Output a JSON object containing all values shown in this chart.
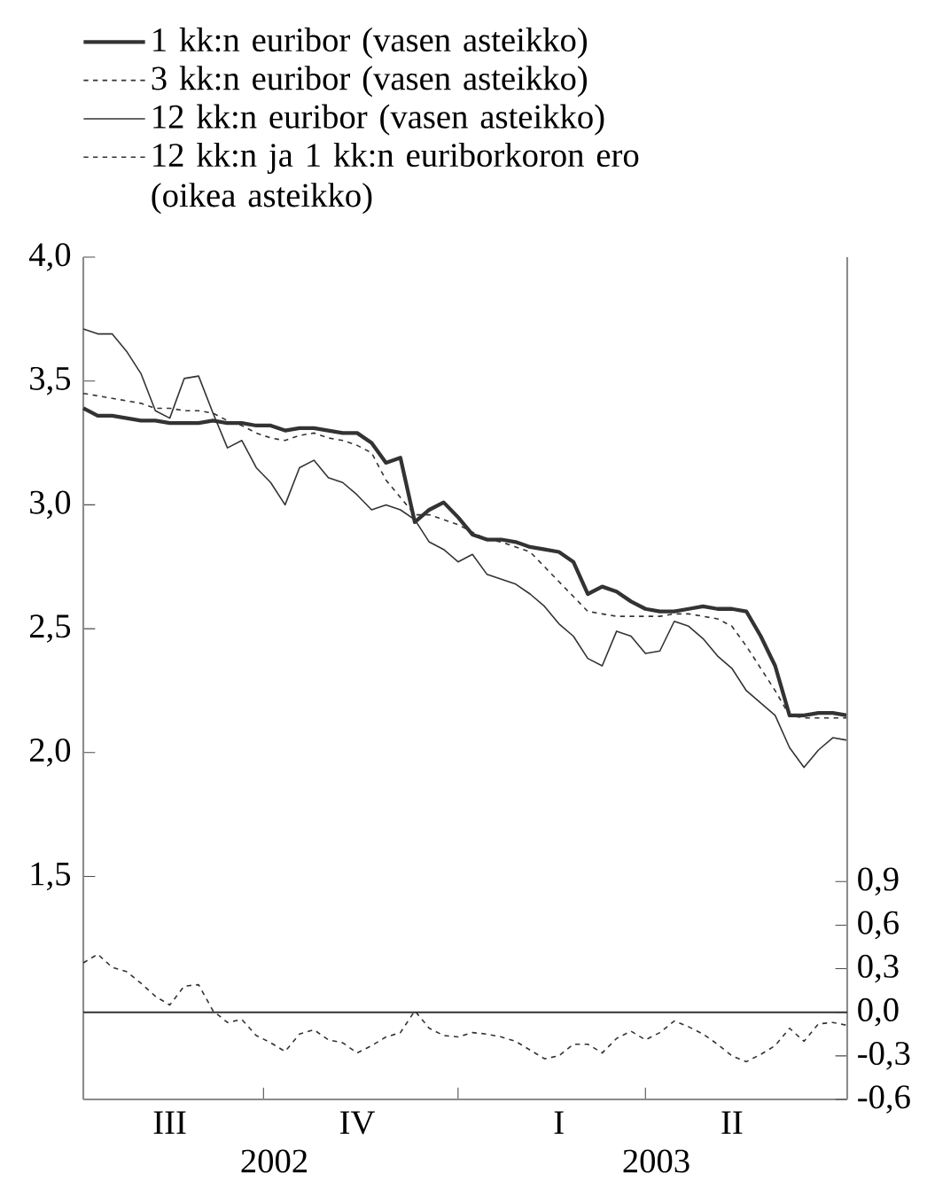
{
  "chart_data": {
    "type": "line",
    "legend": "top",
    "marker": "none",
    "categories": [
      null,
      null,
      null,
      null,
      null,
      null,
      "III",
      null,
      null,
      null,
      null,
      null,
      null,
      null,
      null,
      null,
      null,
      null,
      null,
      "IV",
      null,
      null,
      null,
      null,
      null,
      null,
      null,
      null,
      null,
      null,
      null,
      null,
      null,
      "I",
      null,
      null,
      null,
      null,
      null,
      null,
      null,
      null,
      null,
      null,
      null,
      "II",
      null,
      null,
      null,
      null,
      null,
      null,
      null,
      null
    ],
    "ylim": [
      0.6,
      4.0
    ],
    "yticks": [
      {
        "value": 1.5,
        "label": "1,5"
      },
      {
        "value": 2.0,
        "label": "2,0"
      },
      {
        "value": 2.5,
        "label": "2,5"
      },
      {
        "value": 3.0,
        "label": "3,0"
      },
      {
        "value": 3.5,
        "label": "3,5"
      },
      {
        "value": 4.0,
        "label": "4,0"
      }
    ],
    "y2lim": [
      -0.6,
      5.2
    ],
    "y2ticks": [
      {
        "value": -0.6,
        "label": "-0,6"
      },
      {
        "value": -0.3,
        "label": "-0,3"
      },
      {
        "value": 0.0,
        "label": "0,0"
      },
      {
        "value": 0.3,
        "label": "0,3"
      },
      {
        "value": 0.6,
        "label": "0,6"
      },
      {
        "value": 0.9,
        "label": "0,9"
      }
    ],
    "ref_lines": [
      {
        "axis": "y2",
        "value": 0,
        "color": "#333333"
      }
    ],
    "annotations": [
      "2002",
      "2003"
    ],
    "series": [
      {
        "name": "1 kk:n euribor (vasen asteikko)",
        "color": "#333333",
        "line_style": "solid",
        "values": [
          3.39,
          3.36,
          3.36,
          3.35,
          3.34,
          3.34,
          3.33,
          3.33,
          3.33,
          3.34,
          3.33,
          3.33,
          3.32,
          3.32,
          3.3,
          3.31,
          3.31,
          3.3,
          3.29,
          3.29,
          3.25,
          3.17,
          3.19,
          2.93,
          2.98,
          3.01,
          2.95,
          2.88,
          2.86,
          2.86,
          2.85,
          2.83,
          2.82,
          2.81,
          2.77,
          2.64,
          2.67,
          2.65,
          2.61,
          2.58,
          2.57,
          2.57,
          2.58,
          2.59,
          2.58,
          2.58,
          2.57,
          2.47,
          2.35,
          2.15,
          2.15,
          2.16,
          2.16,
          2.15
        ]
      },
      {
        "name": "3 kk:n euribor (vasen asteikko)",
        "color": "#333333",
        "line_style": "dashed",
        "values": [
          3.45,
          3.44,
          3.43,
          3.42,
          3.41,
          3.39,
          3.39,
          3.38,
          3.38,
          3.37,
          3.34,
          3.32,
          3.29,
          3.27,
          3.26,
          3.28,
          3.29,
          3.27,
          3.26,
          3.24,
          3.21,
          3.1,
          3.03,
          2.96,
          2.96,
          2.94,
          2.92,
          2.89,
          2.86,
          2.85,
          2.83,
          2.81,
          2.75,
          2.69,
          2.63,
          2.57,
          2.56,
          2.55,
          2.55,
          2.55,
          2.55,
          2.56,
          2.56,
          2.55,
          2.54,
          2.51,
          2.43,
          2.34,
          2.25,
          2.15,
          2.14,
          2.14,
          2.14,
          2.14
        ]
      },
      {
        "name": "12 kk:n euribor (vasen asteikko)",
        "color": "#333333",
        "line_style": "solid",
        "values": [
          3.71,
          3.69,
          3.69,
          3.62,
          3.53,
          3.38,
          3.35,
          3.51,
          3.52,
          3.37,
          3.23,
          3.26,
          3.15,
          3.09,
          3.0,
          3.15,
          3.18,
          3.11,
          3.09,
          3.04,
          2.98,
          3.0,
          2.98,
          2.94,
          2.85,
          2.82,
          2.77,
          2.8,
          2.72,
          2.7,
          2.68,
          2.64,
          2.59,
          2.52,
          2.47,
          2.38,
          2.35,
          2.49,
          2.47,
          2.4,
          2.41,
          2.53,
          2.51,
          2.46,
          2.39,
          2.34,
          2.25,
          2.2,
          2.15,
          2.02,
          1.94,
          2.01,
          2.06,
          2.05
        ]
      },
      {
        "name": "12 kk:n ja 1 kk:n euriborkoron ero (oikea asteikko)",
        "color": "#333333",
        "line_style": "dashed",
        "axis": "y2",
        "values": [
          0.34,
          0.4,
          0.31,
          0.28,
          0.2,
          0.11,
          0.05,
          0.18,
          0.19,
          0.01,
          -0.07,
          -0.05,
          -0.16,
          -0.21,
          -0.27,
          -0.15,
          -0.12,
          -0.19,
          -0.21,
          -0.28,
          -0.23,
          -0.17,
          -0.14,
          0.01,
          -0.11,
          -0.16,
          -0.17,
          -0.14,
          -0.15,
          -0.17,
          -0.2,
          -0.26,
          -0.32,
          -0.3,
          -0.22,
          -0.22,
          -0.28,
          -0.18,
          -0.13,
          -0.19,
          -0.14,
          -0.06,
          -0.1,
          -0.15,
          -0.22,
          -0.3,
          -0.34,
          -0.29,
          -0.23,
          -0.11,
          -0.2,
          -0.08,
          -0.07,
          -0.09
        ]
      }
    ]
  }
}
